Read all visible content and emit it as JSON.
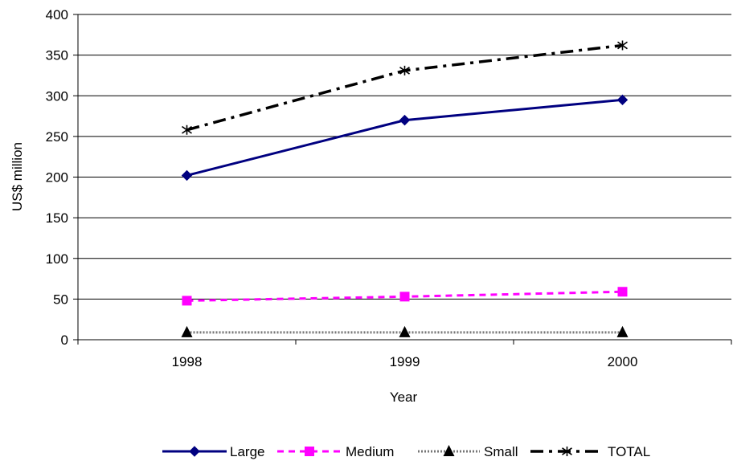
{
  "chart_data": {
    "type": "line",
    "categories": [
      "1998",
      "1999",
      "2000"
    ],
    "xlabel": "Year",
    "ylabel": "US$ million",
    "ylim": [
      0,
      400
    ],
    "yticks": [
      "0",
      "50",
      "100",
      "150",
      "200",
      "250",
      "300",
      "350",
      "400"
    ],
    "grid": "horizontal",
    "legend_position": "bottom",
    "series": [
      {
        "name": "Large",
        "values": [
          202,
          270,
          295
        ],
        "color": "#000080",
        "marker": "diamond",
        "line_style": "solid"
      },
      {
        "name": "Medium",
        "values": [
          48,
          53,
          59
        ],
        "color": "#ff00ff",
        "marker": "square",
        "line_style": "dashed"
      },
      {
        "name": "Small",
        "values": [
          9,
          9,
          9
        ],
        "color": "#000000",
        "marker": "triangle",
        "line_style": "dotted"
      },
      {
        "name": "TOTAL",
        "values": [
          258,
          331,
          362
        ],
        "color": "#000000",
        "marker": "asterisk",
        "line_style": "dash-dot"
      }
    ]
  }
}
